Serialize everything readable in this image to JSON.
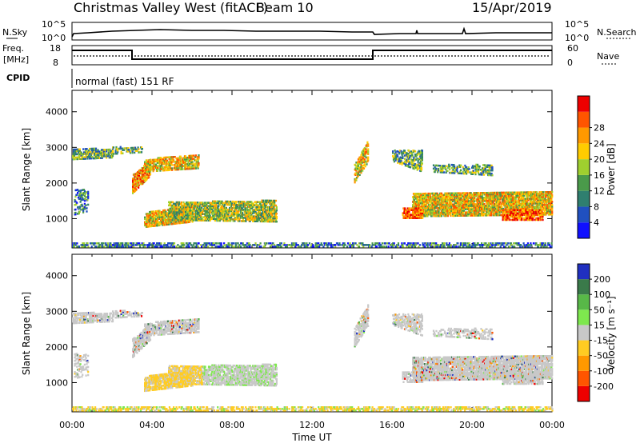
{
  "header": {
    "title": "Christmas Valley West (fitACF)",
    "beam": "Beam 10",
    "date": "15/Apr/2019"
  },
  "strip": {
    "nsky_label": "N.Sky",
    "nsky_ticks": [
      "10^5",
      "10^0"
    ],
    "nsearch_label": "N.Search",
    "nsearch_ticks": [
      "10^5",
      "10^0"
    ],
    "freq_label": "Freq.",
    "freq_unit": "[MHz]",
    "freq_ticks": [
      "18",
      "8"
    ],
    "nave_label": "Nave",
    "nave_ticks": [
      "60",
      "0"
    ],
    "cpid_label": "CPID",
    "cpid_value": "normal (fast) 151 RF"
  },
  "chart_data": [
    {
      "type": "heatmap",
      "name": "power",
      "ylabel": "Slant Range [km]",
      "yticks": [
        "1000",
        "2000",
        "3000",
        "4000"
      ],
      "xticks": [
        "00:00",
        "04:00",
        "08:00",
        "12:00",
        "16:00",
        "20:00",
        "00:00"
      ],
      "colorbar_label": "Power [dB]",
      "colorbar_ticks": [
        "4",
        "8",
        "12",
        "16",
        "20",
        "24",
        "28"
      ],
      "colors": [
        "#1010ff",
        "#2050c0",
        "#2f7f6f",
        "#4a9a4a",
        "#9fcf2f",
        "#ffcc00",
        "#ff9900",
        "#ff5500",
        "#ee0000"
      ]
    },
    {
      "type": "heatmap",
      "name": "velocity",
      "ylabel": "Slant Range [km]",
      "yticks": [
        "1000",
        "2000",
        "3000",
        "4000"
      ],
      "xticks": [
        "00:00",
        "04:00",
        "08:00",
        "12:00",
        "16:00",
        "20:00",
        "00:00"
      ],
      "xlabel": "Time UT",
      "colorbar_label": "Velocity [m s⁻¹]",
      "colorbar_ticks": [
        "200",
        "100",
        "50",
        "15",
        "-15",
        "-50",
        "-100",
        "-200"
      ],
      "colors": [
        "#2030c0",
        "#3a7a4a",
        "#58b848",
        "#7ee84e",
        "#c8c8c8",
        "#ffcc22",
        "#ff9900",
        "#ff5500",
        "#ee0000"
      ]
    }
  ]
}
